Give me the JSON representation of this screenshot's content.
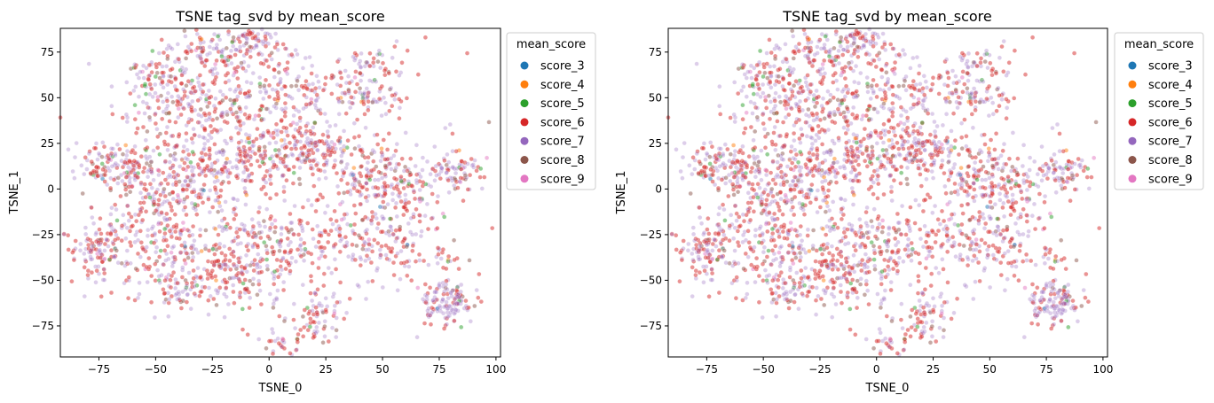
{
  "chart_data": [
    {
      "type": "scatter",
      "title": "TSNE tag_svd by mean_score",
      "xlabel": "TSNE_0",
      "ylabel": "TSNE_1",
      "xlim": [
        -92,
        102
      ],
      "ylim": [
        -92,
        88
      ],
      "xticks": [
        -75,
        -50,
        -25,
        0,
        25,
        50,
        75,
        100
      ],
      "yticks": [
        -75,
        -50,
        -25,
        0,
        25,
        50,
        75
      ],
      "grid": false,
      "legend": {
        "title": "mean_score",
        "placement": "outside-right-top",
        "entries": [
          "score_3",
          "score_4",
          "score_5",
          "score_6",
          "score_7",
          "score_8",
          "score_9"
        ]
      },
      "colors": {
        "score_3": "#1f77b4",
        "score_4": "#ff7f0e",
        "score_5": "#2ca02c",
        "score_6": "#d62728",
        "score_7": "#9467bd",
        "score_8": "#8c564b",
        "score_9": "#e377c2"
      },
      "clusters": [
        {
          "x": -22,
          "y": 75,
          "sx": 14,
          "sy": 8,
          "n": 140
        },
        {
          "x": -8,
          "y": 80,
          "sx": 6,
          "sy": 5,
          "n": 45
        },
        {
          "x": -50,
          "y": 62,
          "sx": 7,
          "sy": 5,
          "n": 50
        },
        {
          "x": -30,
          "y": 48,
          "sx": 16,
          "sy": 12,
          "n": 220
        },
        {
          "x": 12,
          "y": 50,
          "sx": 12,
          "sy": 10,
          "n": 110
        },
        {
          "x": 42,
          "y": 55,
          "sx": 9,
          "sy": 8,
          "n": 90
        },
        {
          "x": 42,
          "y": 70,
          "sx": 6,
          "sy": 4,
          "n": 30
        },
        {
          "x": -70,
          "y": 15,
          "sx": 8,
          "sy": 6,
          "n": 90
        },
        {
          "x": -45,
          "y": 5,
          "sx": 16,
          "sy": 12,
          "n": 230
        },
        {
          "x": -10,
          "y": 15,
          "sx": 14,
          "sy": 12,
          "n": 200
        },
        {
          "x": 20,
          "y": 22,
          "sx": 11,
          "sy": 8,
          "n": 150
        },
        {
          "x": 48,
          "y": 5,
          "sx": 10,
          "sy": 10,
          "n": 160
        },
        {
          "x": 83,
          "y": 10,
          "sx": 5,
          "sy": 5,
          "n": 70
        },
        {
          "x": 65,
          "y": -5,
          "sx": 8,
          "sy": 12,
          "n": 60
        },
        {
          "x": -75,
          "y": -35,
          "sx": 7,
          "sy": 8,
          "n": 110
        },
        {
          "x": -45,
          "y": -28,
          "sx": 14,
          "sy": 12,
          "n": 180
        },
        {
          "x": -15,
          "y": -45,
          "sx": 12,
          "sy": 10,
          "n": 160
        },
        {
          "x": 10,
          "y": -30,
          "sx": 12,
          "sy": 10,
          "n": 130
        },
        {
          "x": 48,
          "y": -30,
          "sx": 11,
          "sy": 10,
          "n": 140
        },
        {
          "x": -40,
          "y": -55,
          "sx": 8,
          "sy": 6,
          "n": 60
        },
        {
          "x": 22,
          "y": -72,
          "sx": 6,
          "sy": 8,
          "n": 70
        },
        {
          "x": 5,
          "y": -85,
          "sx": 4,
          "sy": 3,
          "n": 25
        },
        {
          "x": 78,
          "y": -62,
          "sx": 6,
          "sy": 6,
          "n": 80
        },
        {
          "x": 78,
          "y": -36,
          "sx": 3,
          "sy": 3,
          "n": 15
        },
        {
          "x": 0,
          "y": 0,
          "sx": 45,
          "sy": 40,
          "n": 300
        }
      ]
    },
    {
      "type": "scatter",
      "title": "TSNE tag_svd by mean_score",
      "xlabel": "TSNE_0",
      "ylabel": "TSNE_1",
      "xlim": [
        -92,
        102
      ],
      "ylim": [
        -92,
        88
      ],
      "xticks": [
        -75,
        -50,
        -25,
        0,
        25,
        50,
        75,
        100
      ],
      "yticks": [
        -75,
        -50,
        -25,
        0,
        25,
        50,
        75
      ],
      "grid": false,
      "legend": {
        "title": "mean_score",
        "placement": "outside-right-top",
        "entries": [
          "score_3",
          "score_4",
          "score_5",
          "score_6",
          "score_7",
          "score_8",
          "score_9"
        ]
      },
      "colors": {
        "score_3": "#1f77b4",
        "score_4": "#ff7f0e",
        "score_5": "#2ca02c",
        "score_6": "#d62728",
        "score_7": "#9467bd",
        "score_8": "#8c564b",
        "score_9": "#e377c2"
      }
    }
  ]
}
